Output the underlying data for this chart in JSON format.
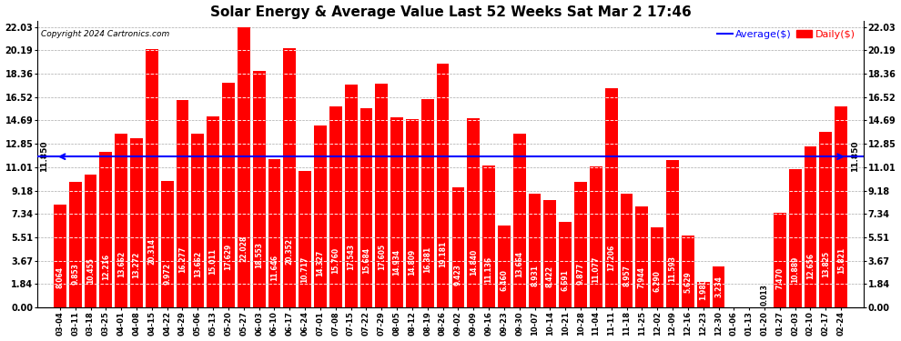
{
  "title": "Solar Energy & Average Value Last 52 Weeks Sat Mar 2 17:46",
  "copyright": "Copyright 2024 Cartronics.com",
  "legend_avg": "Average($)",
  "legend_daily": "Daily($)",
  "avg_value": 11.85,
  "avg_label": "11.850",
  "bar_color": "#ff0000",
  "avg_line_color": "#0000ff",
  "background_color": "#ffffff",
  "grid_color": "#aaaaaa",
  "yticks": [
    0.0,
    1.84,
    3.67,
    5.51,
    7.34,
    9.18,
    11.01,
    12.85,
    14.69,
    16.52,
    18.36,
    20.19,
    22.03
  ],
  "ymax": 22.5,
  "categories": [
    "03-04",
    "03-11",
    "03-18",
    "03-25",
    "04-01",
    "04-08",
    "04-15",
    "04-22",
    "04-29",
    "05-06",
    "05-13",
    "05-20",
    "05-27",
    "06-03",
    "06-10",
    "06-17",
    "06-24",
    "07-01",
    "07-08",
    "07-15",
    "07-22",
    "07-29",
    "08-05",
    "08-12",
    "08-19",
    "08-26",
    "09-02",
    "09-09",
    "09-16",
    "09-23",
    "09-30",
    "10-07",
    "10-14",
    "10-21",
    "10-28",
    "11-04",
    "11-11",
    "11-18",
    "11-25",
    "12-02",
    "12-09",
    "12-16",
    "12-23",
    "12-30",
    "01-06",
    "01-13",
    "01-20",
    "01-27",
    "02-03",
    "02-10",
    "02-17",
    "02-24"
  ],
  "values": [
    8.064,
    9.853,
    10.455,
    12.216,
    13.662,
    13.272,
    20.314,
    9.972,
    16.277,
    13.662,
    15.011,
    17.629,
    22.028,
    18.553,
    11.646,
    20.352,
    10.717,
    14.327,
    15.76,
    17.543,
    15.684,
    17.605,
    14.934,
    14.809,
    16.381,
    19.181,
    9.423,
    14.84,
    11.136,
    6.46,
    13.664,
    8.931,
    8.422,
    6.691,
    9.877,
    11.077,
    17.206,
    8.957,
    7.944,
    6.29,
    11.593,
    5.629,
    1.98,
    3.234,
    0.0,
    0.0,
    0.013,
    7.47,
    10.889,
    12.656,
    13.825,
    15.821
  ],
  "title_fontsize": 11,
  "tick_fontsize": 7,
  "label_fontsize": 5.5
}
